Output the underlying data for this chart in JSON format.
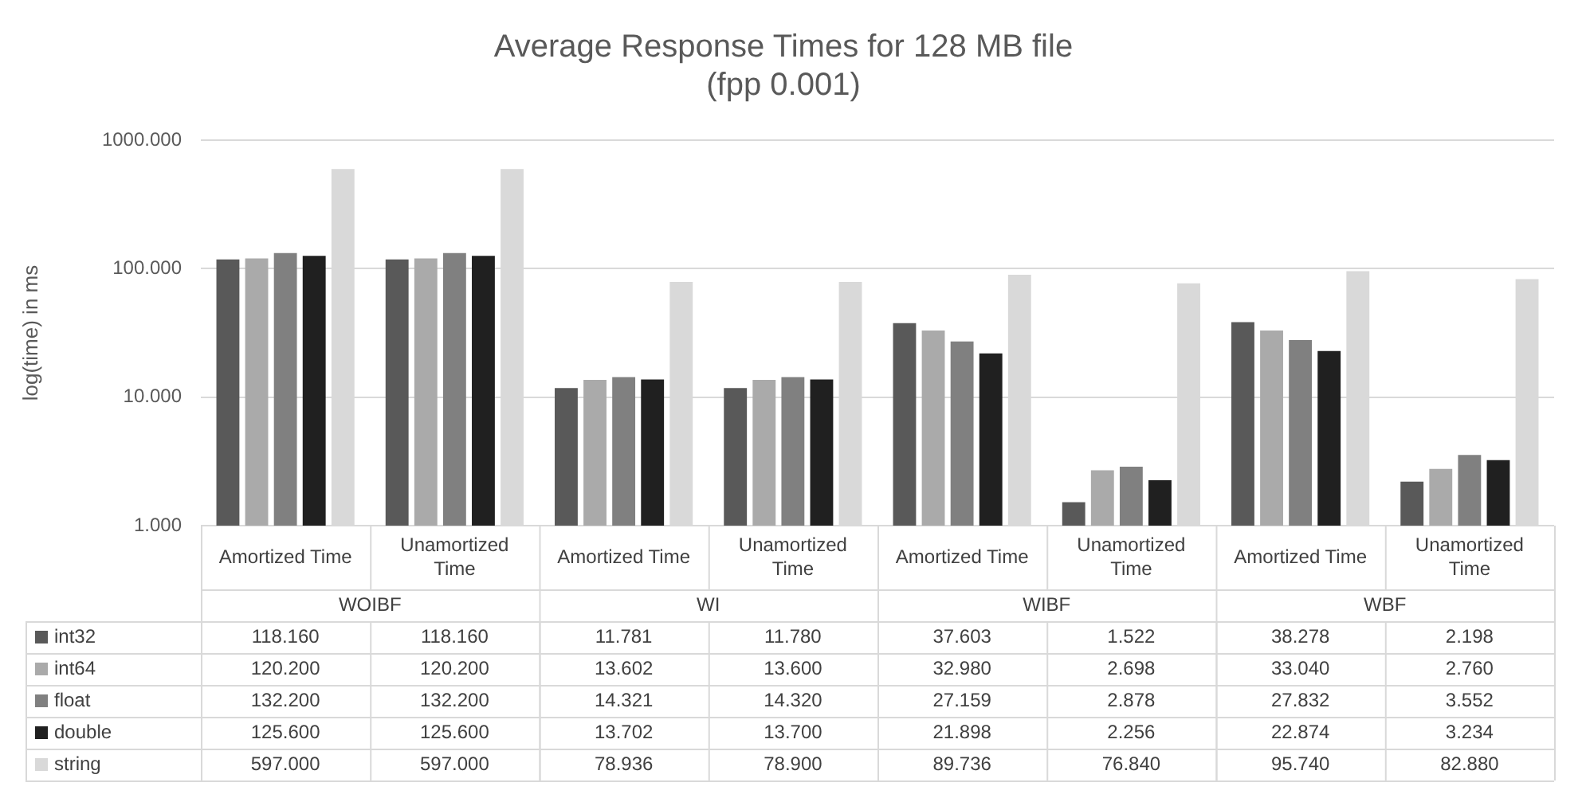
{
  "chart_data": {
    "type": "bar",
    "title": [
      "Average Response Times for 128 MB file",
      "(fpp 0.001)"
    ],
    "ylabel": "log(time) in ms",
    "categories": [
      "Amortized Time",
      "Unamortized Time",
      "Amortized Time",
      "Unamortized Time",
      "Amortized Time",
      "Unamortized Time",
      "Amortized Time",
      "Unamortized Time"
    ],
    "annotations": [
      "WOIBF",
      "WI",
      "WIBF",
      "WBF"
    ],
    "series": [
      {
        "name": "int32",
        "color": "#595959",
        "values": [
          118.16,
          118.16,
          11.781,
          11.78,
          37.603,
          1.522,
          38.278,
          2.198
        ],
        "value_labels": [
          "118.160",
          "118.160",
          "11.781",
          "11.780",
          "37.603",
          "1.522",
          "38.278",
          "2.198"
        ]
      },
      {
        "name": "int64",
        "color": "#aaaaaa",
        "values": [
          120.2,
          120.2,
          13.602,
          13.6,
          32.98,
          2.698,
          33.04,
          2.76
        ],
        "value_labels": [
          "120.200",
          "120.200",
          "13.602",
          "13.600",
          "32.980",
          "2.698",
          "33.040",
          "2.760"
        ]
      },
      {
        "name": "float",
        "color": "#808080",
        "values": [
          132.2,
          132.2,
          14.321,
          14.32,
          27.159,
          2.878,
          27.832,
          3.552
        ],
        "value_labels": [
          "132.200",
          "132.200",
          "14.321",
          "14.320",
          "27.159",
          "2.878",
          "27.832",
          "3.552"
        ]
      },
      {
        "name": "double",
        "color": "#202020",
        "values": [
          125.6,
          125.6,
          13.702,
          13.7,
          21.898,
          2.256,
          22.874,
          3.234
        ],
        "value_labels": [
          "125.600",
          "125.600",
          "13.702",
          "13.700",
          "21.898",
          "2.256",
          "22.874",
          "3.234"
        ]
      },
      {
        "name": "string",
        "color": "#d9d9d9",
        "values": [
          597,
          597,
          78.936,
          78.9,
          89.736,
          76.84,
          95.74,
          82.88
        ],
        "value_labels": [
          "597.000",
          "597.000",
          "78.936",
          "78.900",
          "89.736",
          "76.840",
          "95.740",
          "82.880"
        ]
      }
    ],
    "log": "y",
    "ylim": [
      1,
      1000
    ],
    "yticks": [
      {
        "value": 1,
        "label": "1.000"
      },
      {
        "value": 10,
        "label": "10.000"
      },
      {
        "value": 100,
        "label": "100.000"
      },
      {
        "value": 1000,
        "label": "1000.000"
      }
    ],
    "grid": "y",
    "legend": "bottom"
  }
}
